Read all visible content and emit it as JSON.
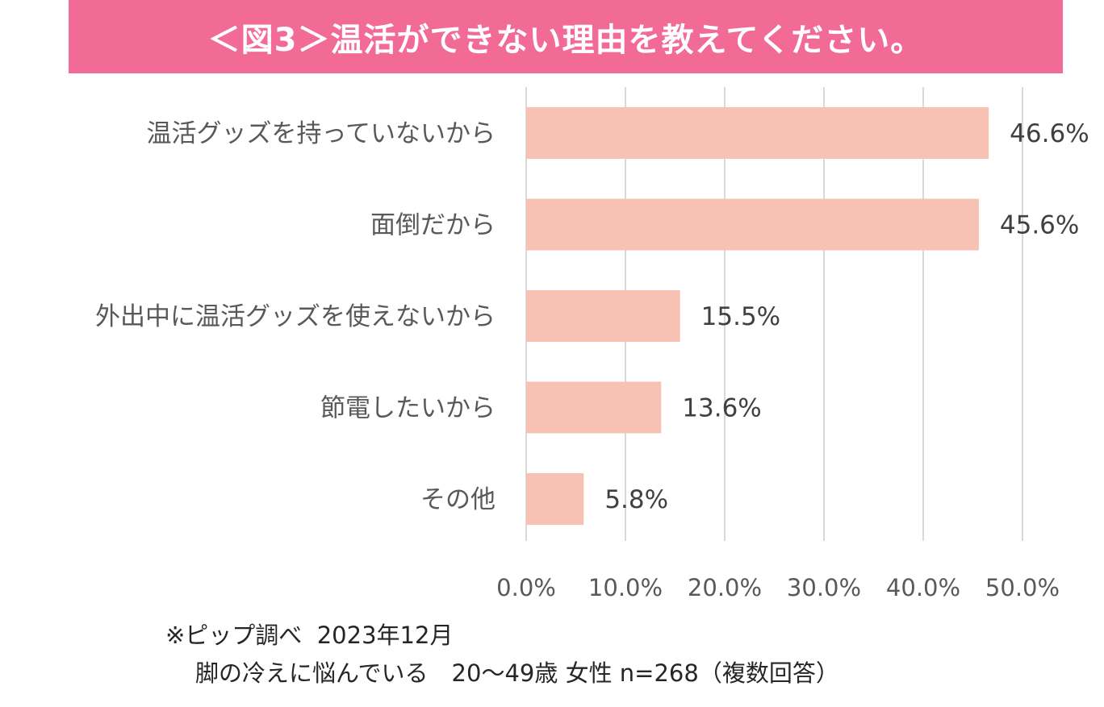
{
  "title": "＜図3＞温活ができない理由を教えてください。",
  "colors": {
    "title_bg": "#f26a96",
    "bar": "#f7c1b3",
    "grid": "#d9d9d9"
  },
  "chart_data": {
    "type": "bar",
    "orientation": "horizontal",
    "categories": [
      "温活グッズを持っていないから",
      "面倒だから",
      "外出中に温活グッズを使えないから",
      "節電したいから",
      "その他"
    ],
    "values": [
      46.6,
      45.6,
      15.5,
      13.6,
      5.8
    ],
    "value_labels": [
      "46.6%",
      "45.6%",
      "15.5%",
      "13.6%",
      "5.8%"
    ],
    "xlim": [
      0,
      50
    ],
    "x_ticks": [
      0,
      10,
      20,
      30,
      40,
      50
    ],
    "x_tick_labels": [
      "0.0%",
      "10.0%",
      "20.0%",
      "30.0%",
      "40.0%",
      "50.0%"
    ],
    "grid": true
  },
  "footnote": {
    "line1": "※ピップ調べ  2023年12月",
    "line2": "脚の冷えに悩んでいる　20～49歳 女性 n=268（複数回答）"
  }
}
